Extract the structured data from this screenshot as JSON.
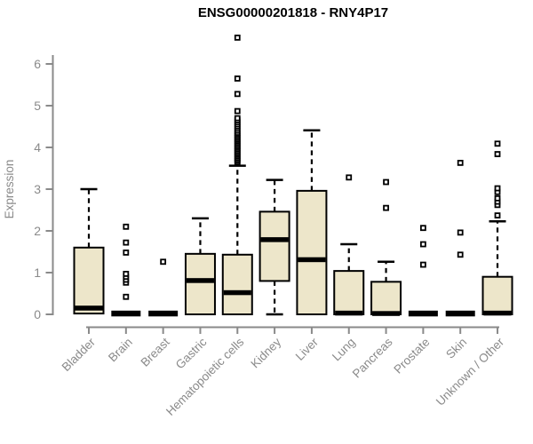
{
  "colors": {
    "background": "#FFFFFF",
    "box_fill": "#EDE6CA",
    "box_border": "#000000",
    "median": "#000000",
    "whisker": "#000000",
    "outlier_fill": "#FFFFFF",
    "axis": "#8A8A8A",
    "title_text": "#000000"
  },
  "chart_data": {
    "type": "boxplot",
    "title": "ENSG00000201818 - RNY4P17",
    "xlabel": "",
    "ylabel": "Expression",
    "ylim": [
      0,
      6.7
    ],
    "y_ticks": [
      0,
      1,
      2,
      3,
      4,
      5,
      6
    ],
    "grid": false,
    "legend": "none",
    "categories": [
      "Bladder",
      "Brain",
      "Breast",
      "Gastric",
      "Hematopoietic cells",
      "Kidney",
      "Liver",
      "Lung",
      "Pancreas",
      "Prostate",
      "Skin",
      "Unknown / Other"
    ],
    "series": [
      {
        "category": "Bladder",
        "whisker_low": 0,
        "q1": 0.02,
        "median": 0.15,
        "q3": 1.6,
        "whisker_high": 3.0,
        "outliers": []
      },
      {
        "category": "Brain",
        "whisker_low": 0,
        "q1": 0,
        "median": 0.02,
        "q3": 0.04,
        "whisker_high": 0.04,
        "outliers": [
          0.42,
          0.76,
          0.83,
          0.9,
          0.97,
          1.48,
          1.72,
          2.1
        ]
      },
      {
        "category": "Breast",
        "whisker_low": 0,
        "q1": 0,
        "median": 0.02,
        "q3": 0.04,
        "whisker_high": 0.04,
        "outliers": [
          1.26
        ]
      },
      {
        "category": "Gastric",
        "whisker_low": 0,
        "q1": 0,
        "median": 0.81,
        "q3": 1.45,
        "whisker_high": 2.3,
        "outliers": []
      },
      {
        "category": "Hematopoietic cells",
        "whisker_low": 0,
        "q1": 0,
        "median": 0.52,
        "q3": 1.43,
        "whisker_high": 3.56,
        "outliers": [
          3.63,
          3.67,
          3.71,
          3.75,
          3.79,
          3.83,
          3.87,
          3.91,
          3.95,
          3.99,
          4.03,
          4.07,
          4.11,
          4.15,
          4.19,
          4.23,
          4.27,
          4.31,
          4.35,
          4.4,
          4.45,
          4.5,
          4.55,
          4.6,
          4.65,
          4.7,
          4.87,
          5.28,
          5.65,
          6.63
        ]
      },
      {
        "category": "Kidney",
        "whisker_low": 0,
        "q1": 0.8,
        "median": 1.79,
        "q3": 2.46,
        "whisker_high": 3.22,
        "outliers": []
      },
      {
        "category": "Liver",
        "whisker_low": 0,
        "q1": 0,
        "median": 1.31,
        "q3": 2.96,
        "whisker_high": 4.41,
        "outliers": []
      },
      {
        "category": "Lung",
        "whisker_low": 0,
        "q1": 0,
        "median": 0.03,
        "q3": 1.04,
        "whisker_high": 1.68,
        "outliers": [
          3.28
        ]
      },
      {
        "category": "Pancreas",
        "whisker_low": 0,
        "q1": 0,
        "median": 0.02,
        "q3": 0.78,
        "whisker_high": 1.26,
        "outliers": [
          2.55,
          3.17
        ]
      },
      {
        "category": "Prostate",
        "whisker_low": 0,
        "q1": 0,
        "median": 0.02,
        "q3": 0.04,
        "whisker_high": 0.04,
        "outliers": [
          1.19,
          1.68,
          2.07
        ]
      },
      {
        "category": "Skin",
        "whisker_low": 0,
        "q1": 0,
        "median": 0.02,
        "q3": 0.04,
        "whisker_high": 0.04,
        "outliers": [
          1.43,
          1.96,
          3.63
        ]
      },
      {
        "category": "Unknown / Other",
        "whisker_low": 0,
        "q1": 0,
        "median": 0.03,
        "q3": 0.9,
        "whisker_high": 2.23,
        "outliers": [
          2.37,
          2.62,
          2.7,
          2.78,
          2.93,
          3.02,
          3.84,
          4.09
        ]
      }
    ]
  }
}
